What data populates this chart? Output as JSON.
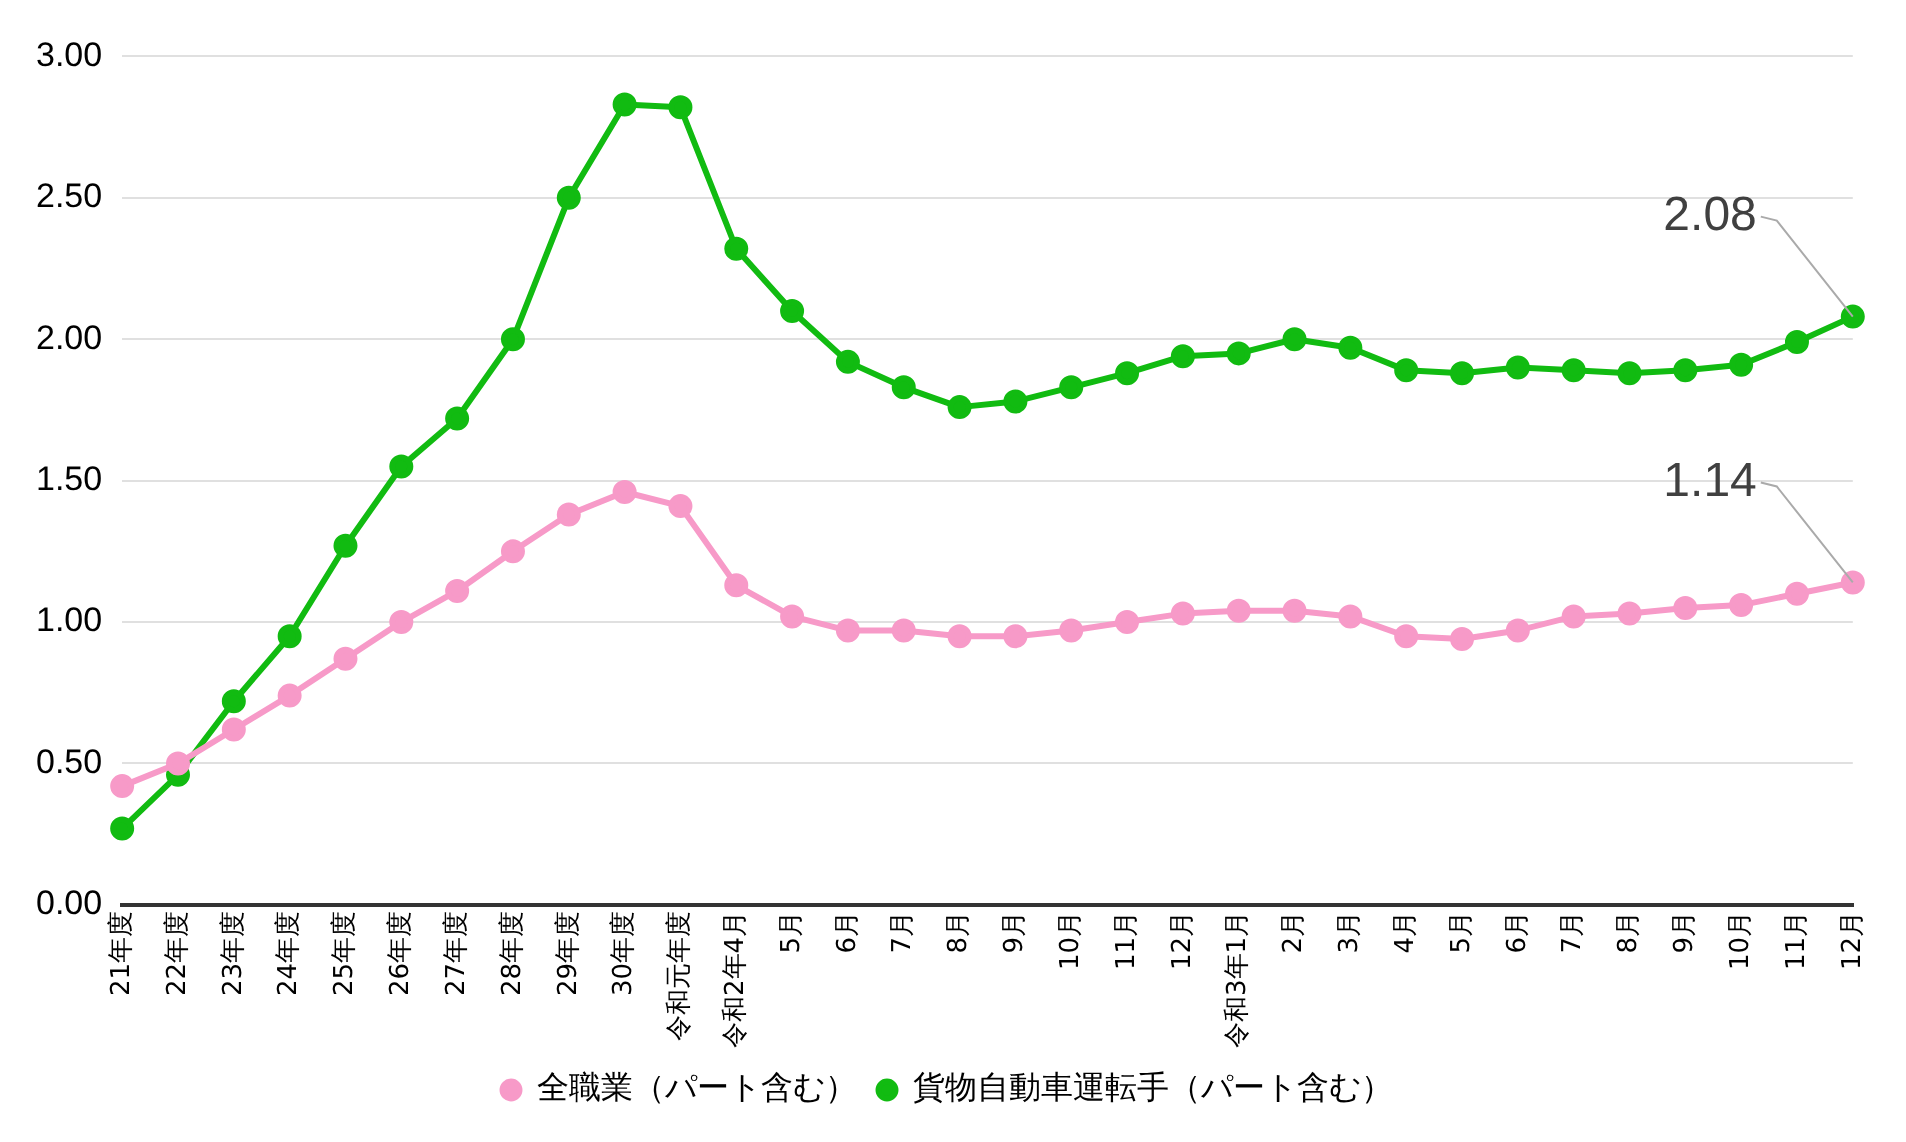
{
  "chart_data": {
    "type": "line",
    "categories": [
      "21年度",
      "22年度",
      "23年度",
      "24年度",
      "25年度",
      "26年度",
      "27年度",
      "28年度",
      "29年度",
      "30年度",
      "令和元年度",
      "令和2年4月",
      "5月",
      "6月",
      "7月",
      "8月",
      "9月",
      "10月",
      "11月",
      "12月",
      "令和3年1月",
      "2月",
      "3月",
      "4月",
      "5月",
      "6月",
      "7月",
      "8月",
      "9月",
      "10月",
      "11月",
      "12月"
    ],
    "series": [
      {
        "name": "全職業（パート含む）",
        "color": "#f79ac8",
        "values": [
          0.42,
          0.5,
          0.62,
          0.74,
          0.87,
          1.0,
          1.11,
          1.25,
          1.38,
          1.46,
          1.41,
          1.13,
          1.02,
          0.97,
          0.97,
          0.95,
          0.95,
          0.97,
          1.0,
          1.03,
          1.04,
          1.04,
          1.02,
          0.95,
          0.94,
          0.97,
          1.02,
          1.03,
          1.05,
          1.06,
          1.1,
          1.14
        ],
        "value_labels": [
          null,
          null,
          null,
          null,
          null,
          null,
          null,
          null,
          null,
          null,
          null,
          null,
          null,
          null,
          null,
          null,
          null,
          null,
          null,
          null,
          null,
          null,
          null,
          null,
          null,
          null,
          null,
          null,
          null,
          null,
          null,
          "1.14"
        ]
      },
      {
        "name": "貨物自動車運転手（パート含む）",
        "color": "#11bb11",
        "values": [
          0.27,
          0.46,
          0.72,
          0.95,
          1.27,
          1.55,
          1.72,
          2.0,
          2.5,
          2.83,
          2.82,
          2.32,
          2.1,
          1.92,
          1.83,
          1.76,
          1.78,
          1.83,
          1.88,
          1.94,
          1.95,
          2.0,
          1.97,
          1.89,
          1.88,
          1.9,
          1.89,
          1.88,
          1.89,
          1.91,
          1.99,
          2.08
        ],
        "value_labels": [
          null,
          null,
          null,
          null,
          null,
          null,
          null,
          null,
          null,
          null,
          null,
          null,
          null,
          null,
          null,
          null,
          null,
          null,
          null,
          null,
          null,
          null,
          null,
          null,
          null,
          null,
          null,
          null,
          null,
          null,
          null,
          "2.08"
        ]
      }
    ],
    "ylim": [
      0,
      3
    ],
    "yticks": [
      {
        "value": 0,
        "label": "0.00"
      },
      {
        "value": 0.5,
        "label": "0.50"
      },
      {
        "value": 1,
        "label": "1.00"
      },
      {
        "value": 1.5,
        "label": "1.50"
      },
      {
        "value": 2,
        "label": "2.00"
      },
      {
        "value": 2.5,
        "label": "2.50"
      },
      {
        "value": 3,
        "label": "3.00"
      }
    ],
    "grid": "y",
    "legend": "bottom",
    "marker": "circle",
    "line_style": "solid"
  }
}
